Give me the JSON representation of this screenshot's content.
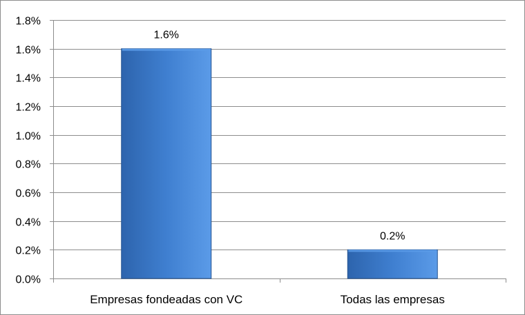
{
  "chart_data": {
    "type": "bar",
    "categories": [
      "Empresas fondeadas con VC",
      "Todas las empresas"
    ],
    "values": [
      1.6,
      0.2
    ],
    "data_labels": [
      "1.6%",
      "0.2%"
    ],
    "y_ticks": [
      "0.0%",
      "0.2%",
      "0.4%",
      "0.6%",
      "0.8%",
      "1.0%",
      "1.2%",
      "1.4%",
      "1.6%",
      "1.8%"
    ],
    "ylim": [
      0,
      1.8
    ],
    "grid": true,
    "legend": "none",
    "title": "",
    "xlabel": "",
    "ylabel": "",
    "colors": {
      "bar_top": "#5b9be8",
      "bar_mid": "#3f7fd0",
      "bar_bottom": "#2d64ad",
      "bar_edge": "#24528f",
      "grid": "#8c8c8c"
    }
  }
}
